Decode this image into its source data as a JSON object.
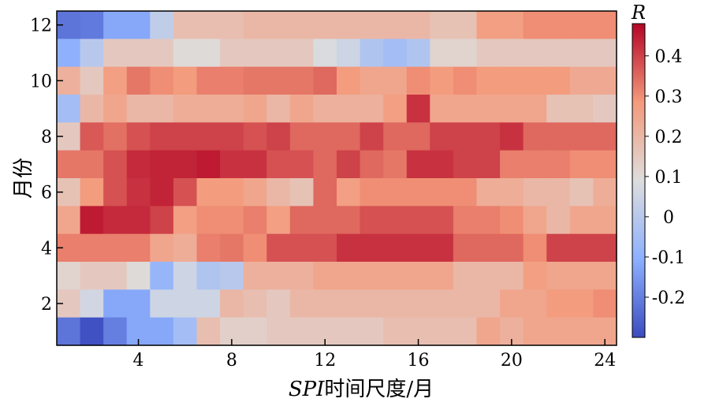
{
  "chart_data": {
    "type": "heatmap",
    "xlabel": "SPI时间尺度/月",
    "xlabel_parts": {
      "italic": "SPI",
      "rest": "时间尺度/月"
    },
    "ylabel": "月份",
    "x_ticks": [
      4,
      8,
      12,
      16,
      20,
      24
    ],
    "y_ticks": [
      2,
      4,
      6,
      8,
      10,
      12
    ],
    "x_range": [
      1,
      24
    ],
    "y_range": [
      1,
      12
    ],
    "colorbar": {
      "label": "R",
      "min": -0.3,
      "max": 0.48,
      "ticks": [
        -0.2,
        -0.1,
        0,
        0.1,
        0.2,
        0.3,
        0.4
      ],
      "tick_labels": [
        "-0.2",
        "-0.1",
        "0",
        "0.1",
        "0.2",
        "0.3",
        "0.4"
      ],
      "colormap": "coolwarm"
    },
    "rows": [
      {
        "month": 12,
        "values": [
          -0.22,
          -0.21,
          -0.12,
          -0.12,
          0.02,
          0.18,
          0.18,
          0.18,
          0.2,
          0.2,
          0.2,
          0.2,
          0.2,
          0.2,
          0.2,
          0.2,
          0.17,
          0.17,
          0.27,
          0.27,
          0.3,
          0.3,
          0.3,
          0.3
        ]
      },
      {
        "month": 11,
        "values": [
          -0.1,
          0.0,
          0.15,
          0.15,
          0.15,
          0.1,
          0.1,
          0.15,
          0.15,
          0.15,
          0.15,
          0.08,
          0.05,
          -0.02,
          -0.05,
          -0.02,
          0.12,
          0.12,
          0.15,
          0.15,
          0.15,
          0.15,
          0.15,
          0.15
        ]
      },
      {
        "month": 10,
        "values": [
          0.22,
          0.15,
          0.27,
          0.33,
          0.3,
          0.28,
          0.32,
          0.32,
          0.33,
          0.33,
          0.33,
          0.35,
          0.28,
          0.25,
          0.25,
          0.3,
          0.28,
          0.3,
          0.28,
          0.28,
          0.28,
          0.28,
          0.24,
          0.24
        ]
      },
      {
        "month": 9,
        "values": [
          -0.05,
          0.2,
          0.25,
          0.2,
          0.2,
          0.23,
          0.23,
          0.23,
          0.25,
          0.2,
          0.25,
          0.22,
          0.22,
          0.22,
          0.27,
          0.42,
          0.25,
          0.25,
          0.25,
          0.25,
          0.25,
          0.17,
          0.17,
          0.15
        ]
      },
      {
        "month": 8,
        "values": [
          0.15,
          0.37,
          0.34,
          0.38,
          0.4,
          0.4,
          0.4,
          0.4,
          0.38,
          0.4,
          0.35,
          0.35,
          0.35,
          0.4,
          0.35,
          0.35,
          0.4,
          0.4,
          0.4,
          0.42,
          0.35,
          0.35,
          0.35,
          0.35
        ]
      },
      {
        "month": 7,
        "values": [
          0.33,
          0.33,
          0.38,
          0.43,
          0.44,
          0.44,
          0.45,
          0.42,
          0.42,
          0.38,
          0.38,
          0.35,
          0.4,
          0.35,
          0.33,
          0.42,
          0.42,
          0.4,
          0.4,
          0.32,
          0.32,
          0.32,
          0.3,
          0.3
        ]
      },
      {
        "month": 6,
        "values": [
          0.17,
          0.28,
          0.38,
          0.42,
          0.44,
          0.38,
          0.28,
          0.28,
          0.25,
          0.2,
          0.17,
          0.35,
          0.27,
          0.3,
          0.3,
          0.3,
          0.3,
          0.3,
          0.23,
          0.23,
          0.2,
          0.2,
          0.17,
          0.23
        ]
      },
      {
        "month": 5,
        "values": [
          0.25,
          0.45,
          0.43,
          0.43,
          0.4,
          0.27,
          0.3,
          0.3,
          0.32,
          0.27,
          0.35,
          0.35,
          0.35,
          0.38,
          0.38,
          0.38,
          0.38,
          0.32,
          0.32,
          0.3,
          0.25,
          0.2,
          0.25,
          0.25
        ]
      },
      {
        "month": 4,
        "values": [
          0.32,
          0.32,
          0.32,
          0.32,
          0.25,
          0.23,
          0.32,
          0.33,
          0.3,
          0.38,
          0.38,
          0.38,
          0.42,
          0.42,
          0.42,
          0.42,
          0.42,
          0.35,
          0.35,
          0.35,
          0.3,
          0.4,
          0.4,
          0.4
        ]
      },
      {
        "month": 3,
        "values": [
          0.12,
          0.15,
          0.15,
          0.1,
          -0.08,
          0.05,
          -0.02,
          0.0,
          0.22,
          0.22,
          0.22,
          0.25,
          0.25,
          0.25,
          0.25,
          0.25,
          0.25,
          0.2,
          0.2,
          0.2,
          0.27,
          0.25,
          0.25,
          0.25
        ]
      },
      {
        "month": 2,
        "values": [
          0.15,
          0.06,
          -0.12,
          -0.12,
          0.05,
          0.05,
          0.05,
          0.2,
          0.18,
          0.15,
          0.2,
          0.2,
          0.2,
          0.2,
          0.2,
          0.2,
          0.2,
          0.2,
          0.2,
          0.25,
          0.25,
          0.28,
          0.28,
          0.3
        ]
      },
      {
        "month": 1,
        "values": [
          -0.22,
          -0.29,
          -0.2,
          -0.12,
          -0.12,
          -0.05,
          0.18,
          0.13,
          0.13,
          0.15,
          0.15,
          0.15,
          0.15,
          0.15,
          0.18,
          0.18,
          0.18,
          0.18,
          0.25,
          0.22,
          0.25,
          0.25,
          0.25,
          0.25
        ]
      }
    ]
  }
}
